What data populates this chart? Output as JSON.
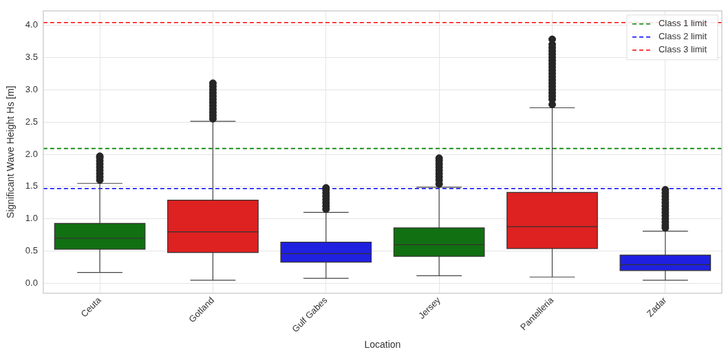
{
  "chart_data": {
    "type": "box",
    "xlabel": "Location",
    "ylabel": "Significant Wave Height Hs [m]",
    "categories": [
      "Ceuta",
      "Gotland",
      "Gulf Gabes",
      "Jersey",
      "Pantelleria",
      "Zadar"
    ],
    "colors": [
      "#117011",
      "#de2121",
      "#2020e0",
      "#117011",
      "#de2121",
      "#2020e0"
    ],
    "boxes": [
      {
        "low": 0.17,
        "q1": 0.53,
        "median": 0.7,
        "q3": 0.93,
        "high": 1.55,
        "outliers": [
          1.6,
          1.65,
          1.7,
          1.75,
          1.8,
          1.85,
          1.9,
          1.95,
          1.97
        ]
      },
      {
        "low": 0.05,
        "q1": 0.48,
        "median": 0.8,
        "q3": 1.29,
        "high": 2.51,
        "outliers": [
          2.55,
          2.6,
          2.65,
          2.7,
          2.75,
          2.8,
          2.85,
          2.9,
          2.95,
          3.0,
          3.05,
          3.1
        ]
      },
      {
        "low": 0.08,
        "q1": 0.33,
        "median": 0.46,
        "q3": 0.64,
        "high": 1.1,
        "outliers": [
          1.15,
          1.2,
          1.25,
          1.3,
          1.35,
          1.4,
          1.45,
          1.48
        ]
      },
      {
        "low": 0.12,
        "q1": 0.42,
        "median": 0.6,
        "q3": 0.86,
        "high": 1.49,
        "outliers": [
          1.54,
          1.6,
          1.65,
          1.7,
          1.75,
          1.8,
          1.85,
          1.9,
          1.94
        ]
      },
      {
        "low": 0.1,
        "q1": 0.54,
        "median": 0.88,
        "q3": 1.41,
        "high": 2.72,
        "outliers": [
          2.77,
          2.85,
          2.9,
          2.95,
          3.0,
          3.05,
          3.1,
          3.15,
          3.2,
          3.25,
          3.3,
          3.35,
          3.4,
          3.45,
          3.5,
          3.55,
          3.6,
          3.65,
          3.7,
          3.78
        ]
      },
      {
        "low": 0.05,
        "q1": 0.2,
        "median": 0.29,
        "q3": 0.44,
        "high": 0.81,
        "outliers": [
          0.86,
          0.9,
          0.95,
          1.0,
          1.05,
          1.1,
          1.15,
          1.2,
          1.25,
          1.3,
          1.35,
          1.4,
          1.45
        ]
      }
    ],
    "ylim": [
      -0.15,
      4.22
    ],
    "yticks": [
      {
        "value": 0,
        "label": "0.0"
      },
      0.5,
      {
        "value": 1,
        "label": "1.0"
      },
      1.5,
      {
        "value": 2,
        "label": "2.0"
      },
      2.5,
      {
        "value": 3,
        "label": "3.0"
      },
      3.5,
      {
        "value": 4,
        "label": "4.0"
      }
    ],
    "ref_lines": [
      {
        "axis": "y",
        "value": 2.09,
        "label": "Class 1 limit",
        "color": "#008000",
        "line_style": "dashed"
      },
      {
        "axis": "y",
        "value": 1.47,
        "label": "Class 2 limit",
        "color": "#0000ff",
        "line_style": "dashed"
      },
      {
        "axis": "y",
        "value": 4.04,
        "label": "Class 3 limit",
        "color": "#ff0000",
        "line_style": "dashed"
      }
    ],
    "grid": true,
    "legend": "top right"
  }
}
